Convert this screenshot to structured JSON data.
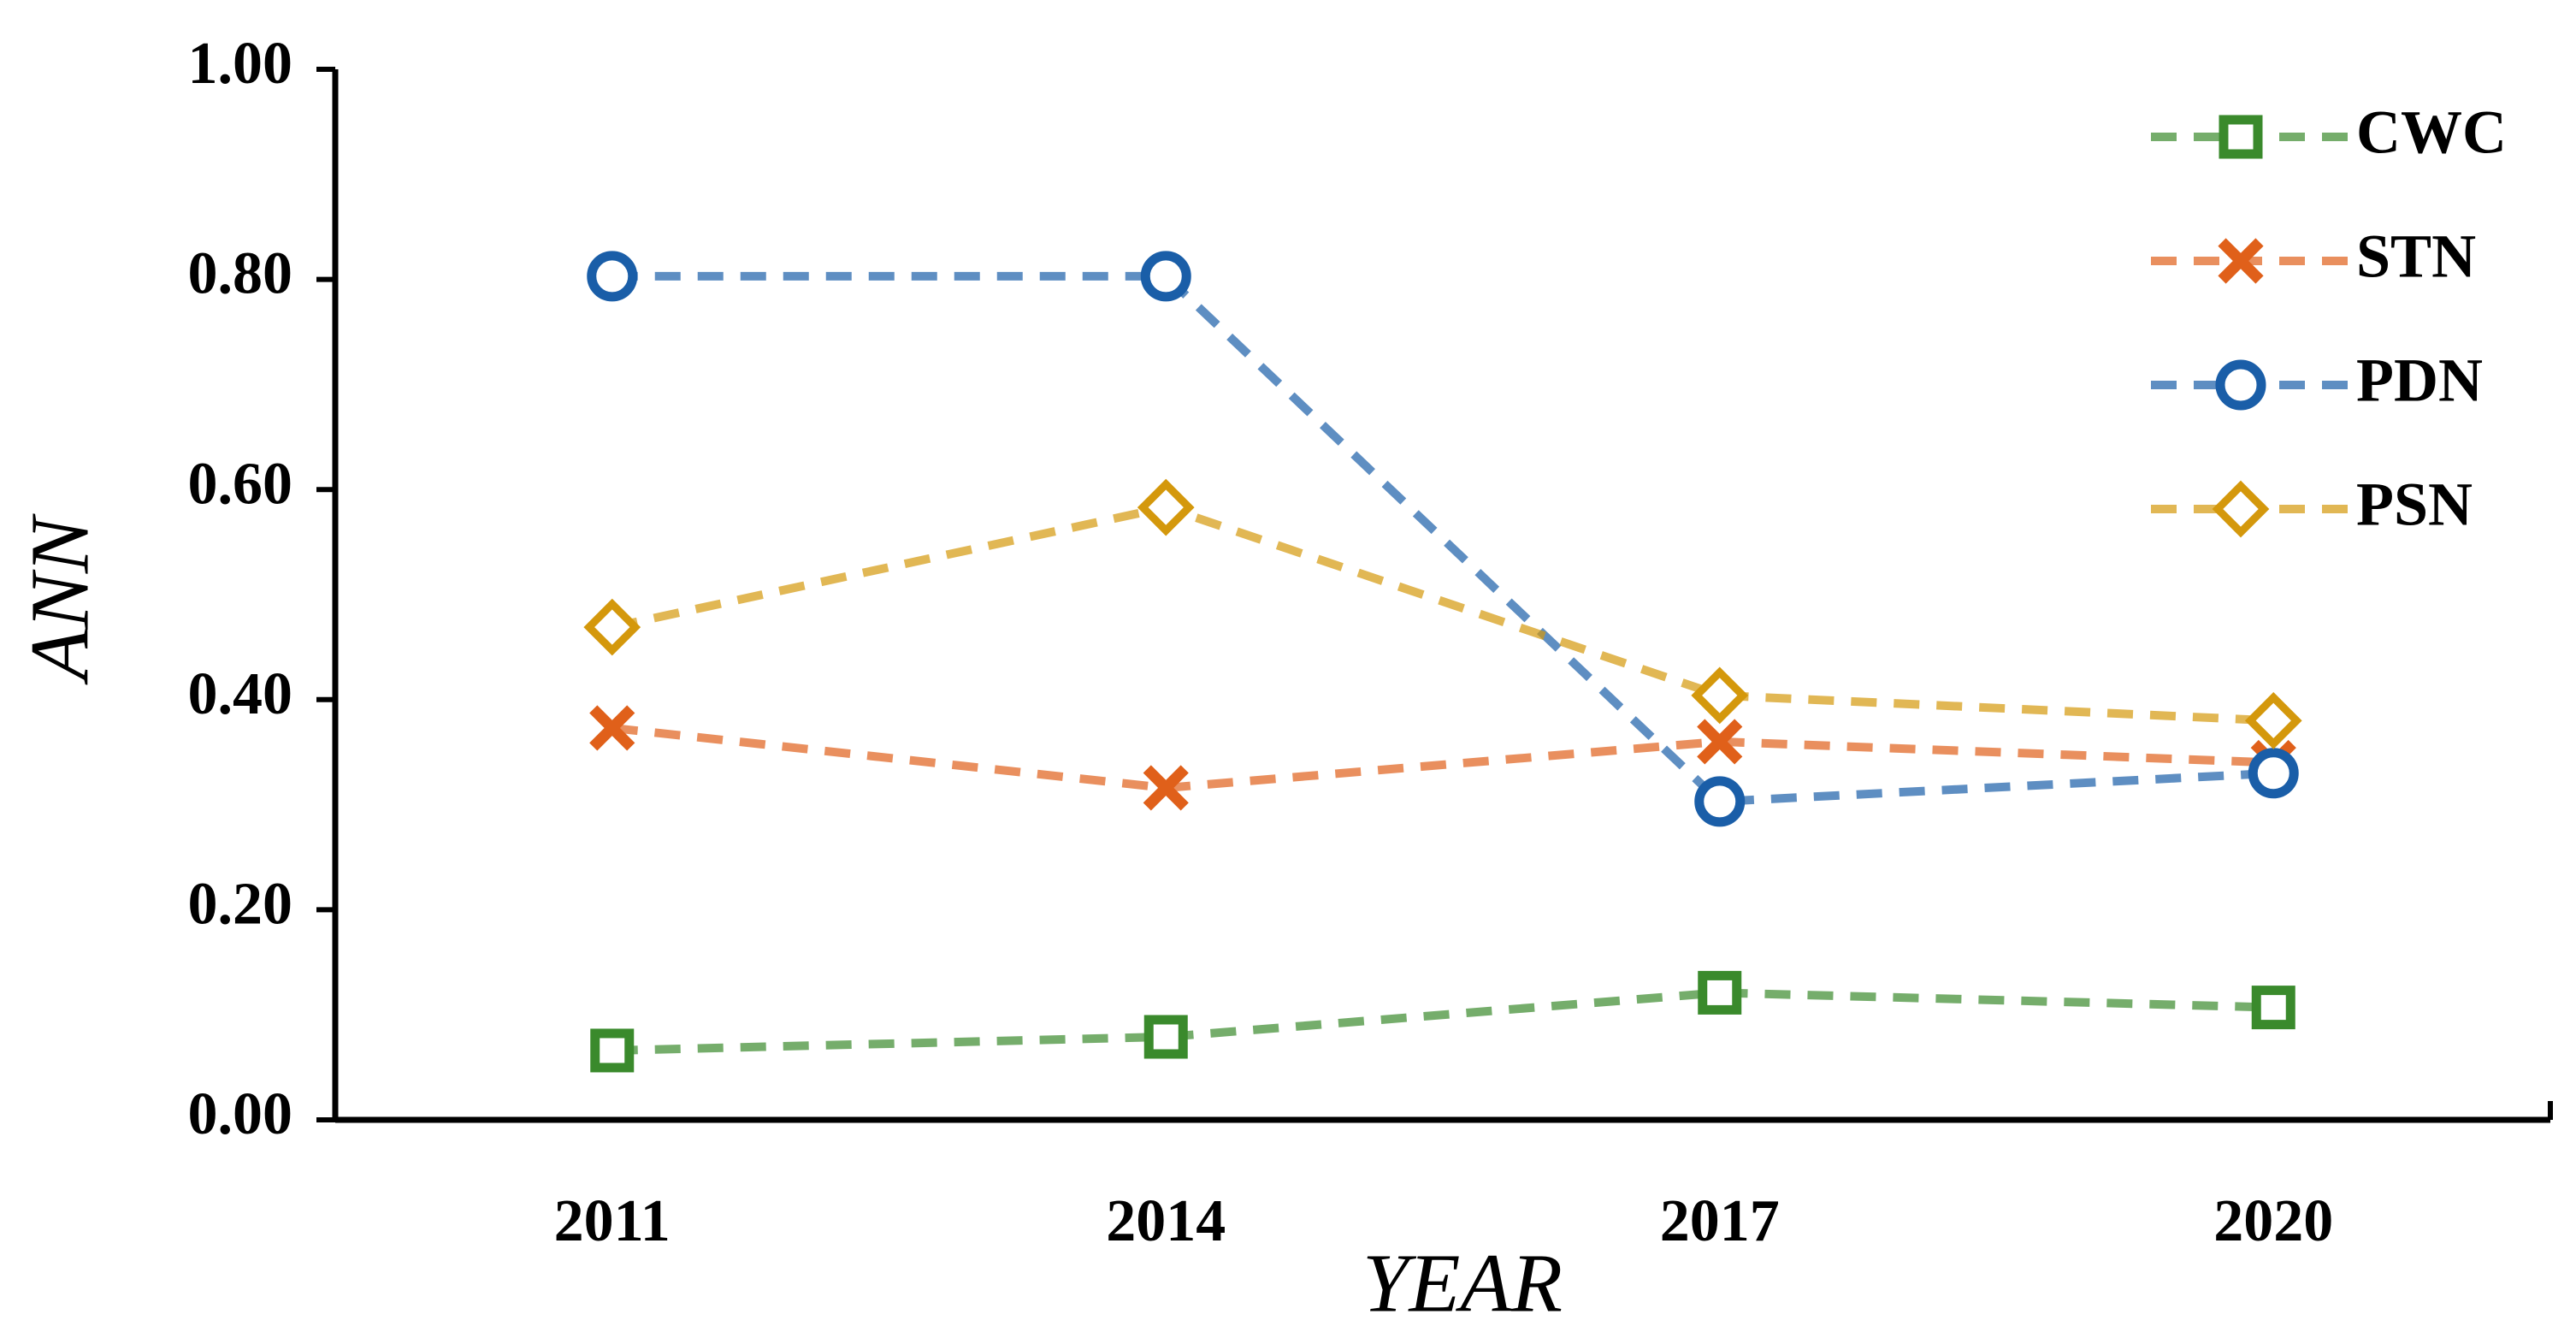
{
  "chart_data": {
    "type": "line",
    "x_label": "YEAR",
    "y_label": "ANN",
    "categories": [
      "2011",
      "2014",
      "2017",
      "2020"
    ],
    "series": [
      {
        "name": "CWC",
        "color": "#3a8a2c",
        "marker": "square",
        "values": [
          0.066,
          0.079,
          0.121,
          0.107
        ]
      },
      {
        "name": "STN",
        "color": "#e0601a",
        "marker": "x",
        "values": [
          0.373,
          0.316,
          0.36,
          0.34
        ]
      },
      {
        "name": "PDN",
        "color": "#1a5ea8",
        "marker": "circle",
        "values": [
          0.803,
          0.803,
          0.303,
          0.33
        ]
      },
      {
        "name": "PSN",
        "color": "#d4980c",
        "marker": "diamond",
        "values": [
          0.469,
          0.583,
          0.404,
          0.38
        ]
      }
    ],
    "ylim": [
      0,
      1
    ],
    "yticks": [
      {
        "value": 0,
        "label": "0.00"
      },
      {
        "value": 0.2,
        "label": "0.20"
      },
      {
        "value": 0.4,
        "label": "0.40"
      },
      {
        "value": 0.6,
        "label": "0.60"
      },
      {
        "value": 0.8,
        "label": "0.80"
      },
      {
        "value": 1,
        "label": "1.00"
      }
    ],
    "legend": "upper right"
  }
}
